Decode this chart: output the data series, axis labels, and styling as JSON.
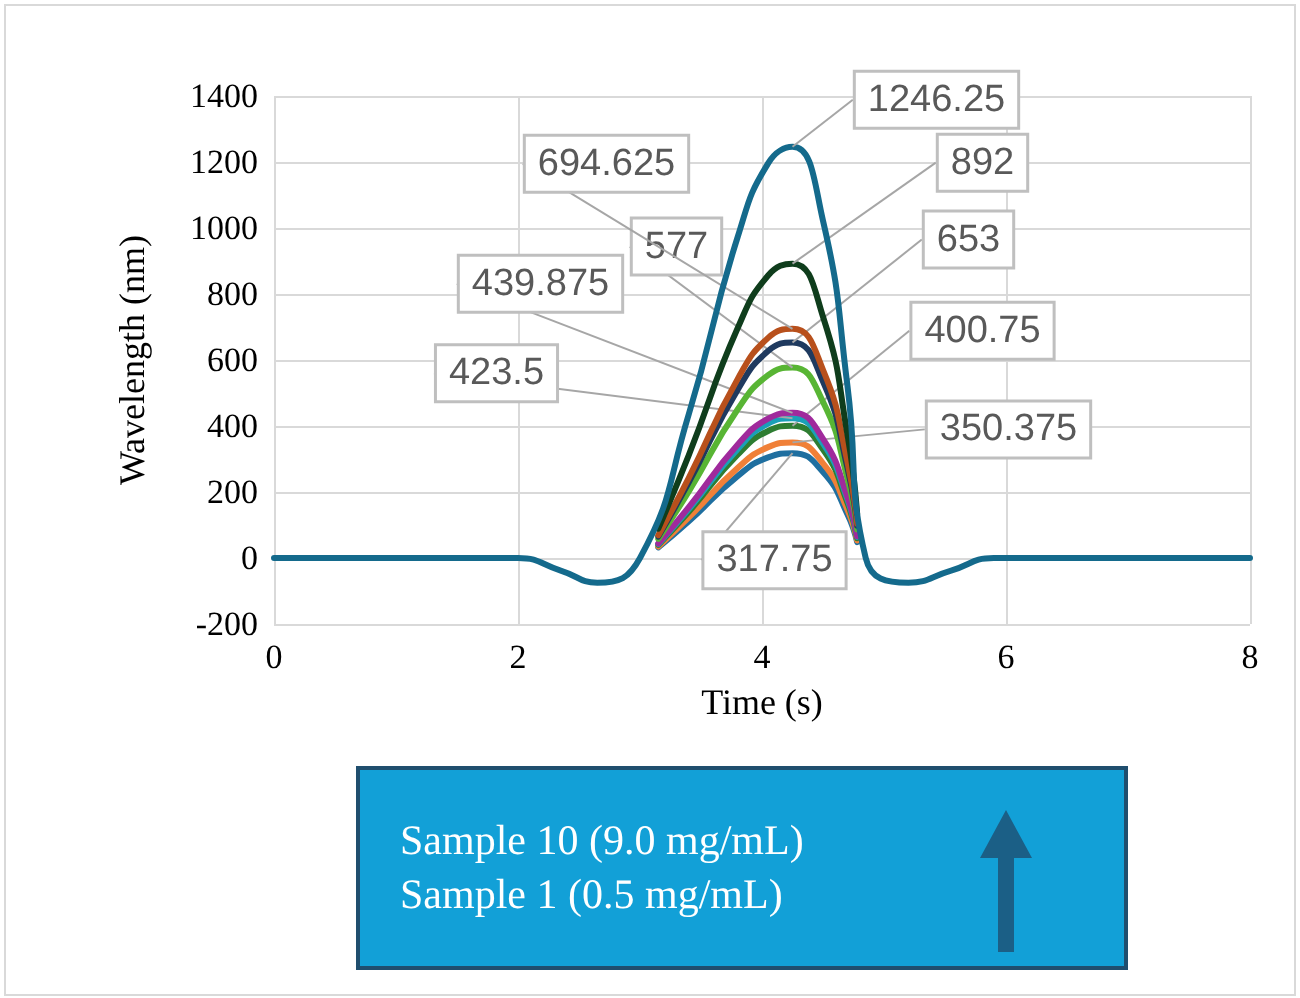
{
  "chart_data": {
    "type": "line",
    "xlabel": "Time (s)",
    "ylabel": "Wavelength (nm)",
    "xlim": [
      0,
      8
    ],
    "xticks": [
      0,
      2,
      4,
      6,
      8
    ],
    "ylim": [
      -200,
      1400
    ],
    "yticks": [
      -200,
      0,
      200,
      400,
      600,
      800,
      1000,
      1200,
      1400
    ],
    "grid": true,
    "marker": "none",
    "line_style": "solid",
    "series": [
      {
        "color": "#1f6fa0",
        "x": [
          3.15,
          3.4,
          3.8,
          4.05,
          4.25,
          4.5,
          4.7,
          4.78
        ],
        "values": [
          32,
          111,
          248,
          305,
          317.75,
          261,
          133,
          48
        ],
        "value_labels": [
          null,
          null,
          null,
          null,
          "317.75",
          null,
          null,
          null
        ]
      },
      {
        "color": "#f08038",
        "x": [
          3.15,
          3.4,
          3.8,
          4.05,
          4.25,
          4.5,
          4.7,
          4.78
        ],
        "values": [
          35,
          123,
          273,
          336,
          350.375,
          287,
          147,
          53
        ],
        "value_labels": [
          null,
          null,
          null,
          null,
          "350.375",
          null,
          null,
          null
        ]
      },
      {
        "color": "#2e7d32",
        "x": [
          3.15,
          3.4,
          3.8,
          4.05,
          4.25,
          4.5,
          4.7,
          4.78
        ],
        "values": [
          40,
          140,
          313,
          385,
          400.75,
          329,
          168,
          60
        ],
        "value_labels": [
          null,
          null,
          null,
          null,
          "400.75",
          null,
          null,
          null
        ]
      },
      {
        "color": "#1aa0b8",
        "x": [
          3.15,
          3.4,
          3.8,
          4.05,
          4.25,
          4.5,
          4.7,
          4.78
        ],
        "values": [
          42,
          148,
          330,
          407,
          423.5,
          347,
          178,
          64
        ],
        "value_labels": [
          null,
          null,
          null,
          null,
          "423.5",
          null,
          null,
          null
        ]
      },
      {
        "color": "#a02a9c",
        "x": [
          3.15,
          3.4,
          3.8,
          4.05,
          4.25,
          4.5,
          4.7,
          4.78
        ],
        "values": [
          44,
          154,
          343,
          422,
          439.875,
          361,
          185,
          66
        ],
        "value_labels": [
          null,
          null,
          null,
          null,
          "439.875",
          null,
          null,
          null
        ]
      },
      {
        "color": "#58b534",
        "x": [
          3.15,
          3.4,
          3.8,
          4.05,
          4.25,
          4.5,
          4.7,
          4.78
        ],
        "values": [
          58,
          202,
          450,
          554,
          577,
          473,
          242,
          87
        ],
        "value_labels": [
          null,
          null,
          null,
          null,
          "577",
          null,
          null,
          null
        ]
      },
      {
        "color": "#1f3a5f",
        "x": [
          3.15,
          3.4,
          3.8,
          4.05,
          4.25,
          4.5,
          4.7,
          4.78
        ],
        "values": [
          65,
          229,
          509,
          627,
          653,
          535,
          274,
          98
        ],
        "value_labels": [
          null,
          null,
          null,
          null,
          "653",
          null,
          null,
          null
        ]
      },
      {
        "color": "#b8501c",
        "x": [
          3.15,
          3.4,
          3.8,
          4.05,
          4.25,
          4.5,
          4.7,
          4.78
        ],
        "values": [
          69,
          243,
          542,
          667,
          694.625,
          570,
          292,
          104
        ],
        "value_labels": [
          null,
          null,
          null,
          null,
          "694.625",
          null,
          null,
          null
        ]
      },
      {
        "color": "#0f3d1c",
        "x": [
          3.15,
          3.4,
          3.8,
          4.05,
          4.25,
          4.5,
          4.7,
          4.78
        ],
        "values": [
          89,
          312,
          696,
          856,
          892,
          731,
          375,
          134
        ],
        "value_labels": [
          null,
          null,
          null,
          null,
          "892",
          null,
          null,
          null
        ]
      },
      {
        "color": "#146a8c",
        "x": [
          0,
          2,
          2.35,
          2.65,
          3.0,
          3.4,
          3.8,
          4.05,
          4.25,
          4.5,
          4.7,
          4.85,
          5.2,
          5.55,
          5.9,
          8
        ],
        "values": [
          0,
          0,
          -38,
          -75,
          0,
          436,
          972,
          1196,
          1246.25,
          1022,
          523,
          0,
          -75,
          -38,
          0,
          0
        ],
        "value_labels": [
          null,
          null,
          null,
          null,
          null,
          null,
          null,
          null,
          "1246.25",
          null,
          null,
          null,
          null,
          null,
          null,
          null
        ]
      }
    ],
    "annotations": [
      "Sample 10 (9.0 mg/mL)",
      "Sample 1 (0.5 mg/mL)"
    ]
  }
}
